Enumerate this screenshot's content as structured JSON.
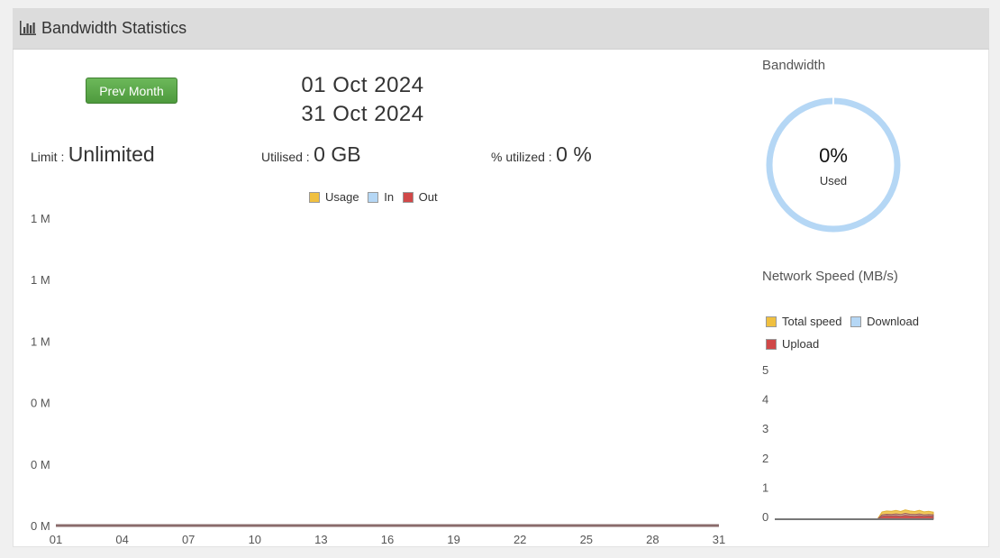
{
  "header": {
    "title": "Bandwidth Statistics",
    "icon": "bar-chart-icon"
  },
  "controls": {
    "prev_month_label": "Prev Month"
  },
  "period": {
    "start": "01 Oct 2024",
    "end": "31 Oct 2024"
  },
  "stats": {
    "limit_label": "Limit :",
    "limit_value": "Unlimited",
    "utilised_label": "Utilised :",
    "utilised_value": "0 GB",
    "pct_label": "% utilized :",
    "pct_value": "0 %"
  },
  "colors": {
    "usage": "#f0c040",
    "in": "#b5d7f5",
    "out": "#d04848",
    "total_speed": "#f0c040",
    "download": "#b5d7f5",
    "upload": "#d04848",
    "donut": "#b5d7f5"
  },
  "donut": {
    "title": "Bandwidth",
    "pct_text": "0%",
    "used_label": "Used",
    "used_fraction": 0
  },
  "chart_data": [
    {
      "type": "line",
      "title": "",
      "legend": [
        "Usage",
        "In",
        "Out"
      ],
      "legend_placement": "top",
      "y_tick_labels": [
        "1 M",
        "1 M",
        "1 M",
        "0 M",
        "0 M",
        "0 M"
      ],
      "x_tick_labels": [
        "01",
        "04",
        "07",
        "10",
        "13",
        "16",
        "19",
        "22",
        "25",
        "28",
        "31"
      ],
      "x": [
        "01",
        "02",
        "03",
        "04",
        "05",
        "06",
        "07",
        "08",
        "09",
        "10",
        "11",
        "12",
        "13",
        "14",
        "15",
        "16",
        "17",
        "18",
        "19",
        "20",
        "21",
        "22",
        "23",
        "24",
        "25",
        "26",
        "27",
        "28",
        "29",
        "30",
        "31"
      ],
      "series": [
        {
          "name": "Usage",
          "values": [
            0,
            0,
            0,
            0,
            0,
            0,
            0,
            0,
            0,
            0,
            0,
            0,
            0,
            0,
            0,
            0,
            0,
            0,
            0,
            0,
            0,
            0,
            0,
            0,
            0,
            0,
            0,
            0,
            0,
            0,
            0
          ]
        },
        {
          "name": "In",
          "values": [
            0,
            0,
            0,
            0,
            0,
            0,
            0,
            0,
            0,
            0,
            0,
            0,
            0,
            0,
            0,
            0,
            0,
            0,
            0,
            0,
            0,
            0,
            0,
            0,
            0,
            0,
            0,
            0,
            0,
            0,
            0
          ]
        },
        {
          "name": "Out",
          "values": [
            0,
            0,
            0,
            0,
            0,
            0,
            0,
            0,
            0,
            0,
            0,
            0,
            0,
            0,
            0,
            0,
            0,
            0,
            0,
            0,
            0,
            0,
            0,
            0,
            0,
            0,
            0,
            0,
            0,
            0,
            0
          ]
        }
      ],
      "grid": false
    },
    {
      "type": "area",
      "title": "Network Speed (MB/s)",
      "legend": [
        "Total speed",
        "Download",
        "Upload"
      ],
      "legend_placement": "top",
      "y_tick_labels": [
        "5",
        "4",
        "3",
        "2",
        "1",
        "0"
      ],
      "ylim": [
        0,
        5
      ],
      "series": [
        {
          "name": "Total speed",
          "values": [
            0,
            0,
            0,
            0,
            0,
            0,
            0,
            0,
            0,
            0,
            0,
            0,
            0,
            0,
            0,
            0,
            0,
            0,
            0,
            0,
            0,
            0,
            0,
            0.25,
            0.28,
            0.27,
            0.3,
            0.26,
            0.32,
            0.28,
            0.26,
            0.3,
            0.25,
            0.27,
            0.24
          ]
        },
        {
          "name": "Download",
          "values": [
            0,
            0,
            0,
            0,
            0,
            0,
            0,
            0,
            0,
            0,
            0,
            0,
            0,
            0,
            0,
            0,
            0,
            0,
            0,
            0,
            0,
            0,
            0,
            0.15,
            0.17,
            0.16,
            0.18,
            0.16,
            0.2,
            0.17,
            0.16,
            0.18,
            0.15,
            0.16,
            0.15
          ]
        },
        {
          "name": "Upload",
          "values": [
            0,
            0,
            0,
            0,
            0,
            0,
            0,
            0,
            0,
            0,
            0,
            0,
            0,
            0,
            0,
            0,
            0,
            0,
            0,
            0,
            0,
            0,
            0,
            0.1,
            0.12,
            0.11,
            0.12,
            0.1,
            0.13,
            0.11,
            0.1,
            0.12,
            0.1,
            0.11,
            0.1
          ]
        }
      ],
      "grid": false
    }
  ]
}
